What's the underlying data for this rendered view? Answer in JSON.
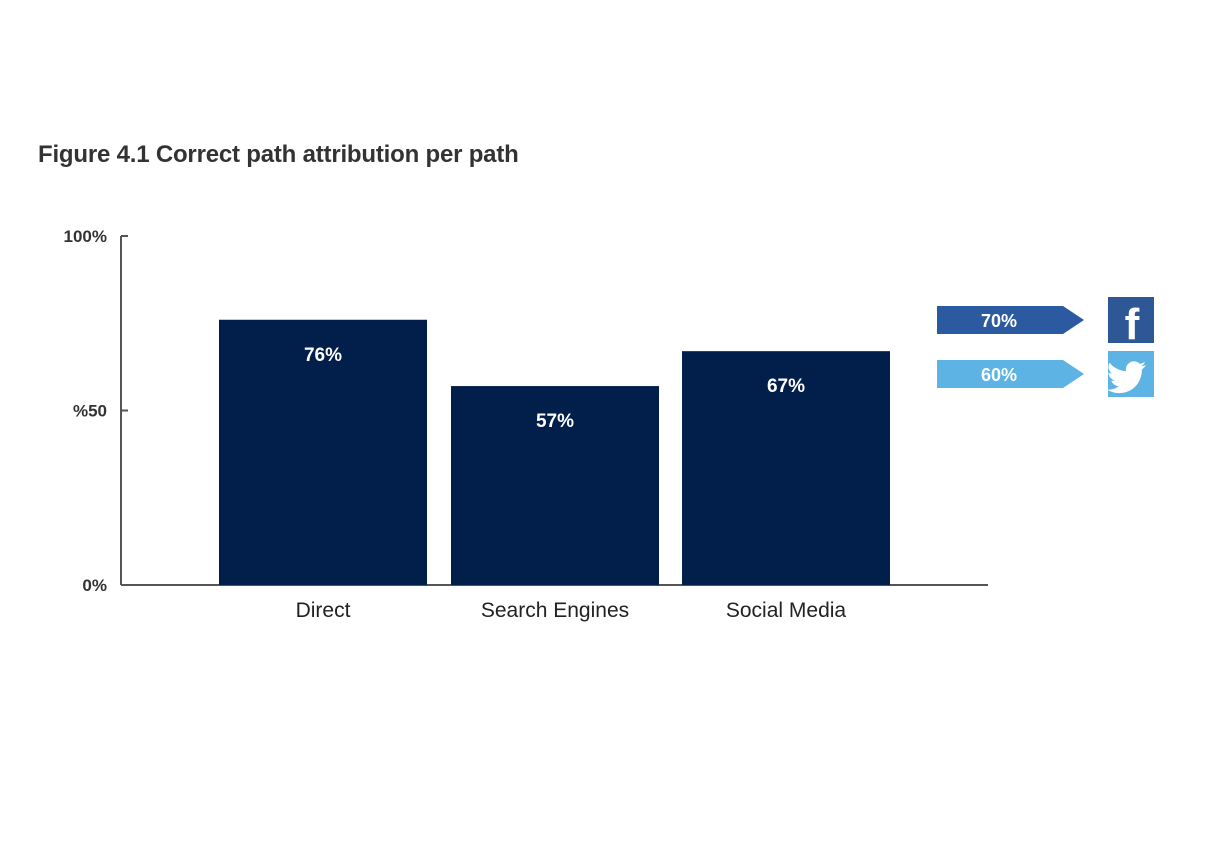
{
  "chart_data": {
    "type": "bar",
    "title": "Figure 4.1 Correct path attribution per path",
    "xlabel": "",
    "ylabel": "",
    "categories": [
      "Direct",
      "Search Engines",
      "Social Media"
    ],
    "values": [
      76,
      57,
      67
    ],
    "value_labels": [
      "76%",
      "57%",
      "67%"
    ],
    "ylim": [
      0,
      100
    ],
    "yticks": [
      {
        "value": 0,
        "label": "0%"
      },
      {
        "value": 50,
        "label": "%50"
      },
      {
        "value": 100,
        "label": "100%"
      }
    ],
    "grid": false,
    "colors": {
      "bar": "#021e4a",
      "axis": "#555555"
    },
    "annotations": [
      {
        "platform": "Facebook",
        "icon": "facebook-icon",
        "value": 70,
        "label": "70%",
        "color": "#2c5aa0",
        "icon_color": "#2e5795"
      },
      {
        "platform": "Twitter",
        "icon": "twitter-icon",
        "value": 60,
        "label": "60%",
        "color": "#5db4e4",
        "icon_color": "#5db4e4"
      }
    ]
  }
}
